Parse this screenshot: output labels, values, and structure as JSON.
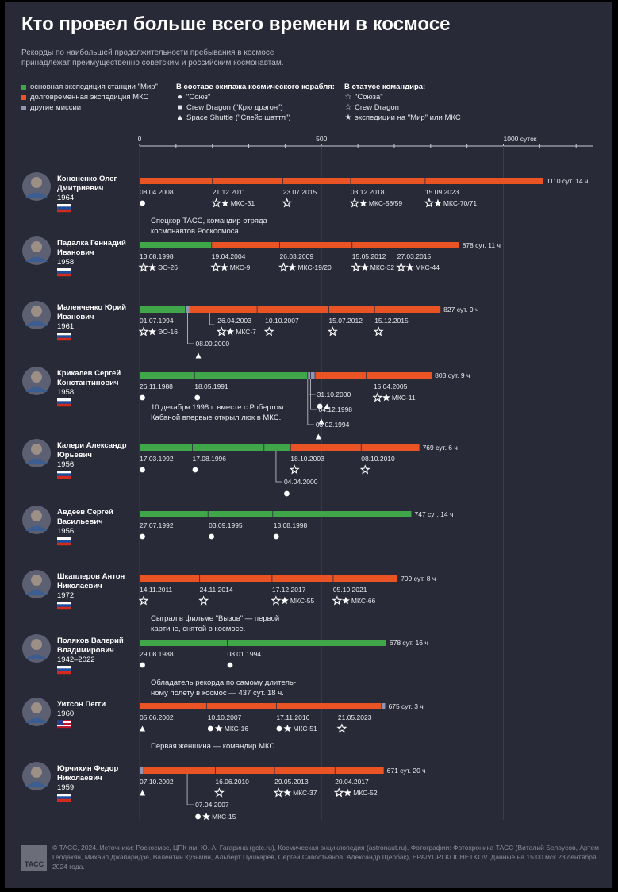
{
  "title": "Кто провел больше всего времени в космосе",
  "subtitle": "Рекорды по наибольшей продолжительности пребывания в космосе принадлежат преимущественно советским и российским космонавтам.",
  "colors": {
    "mir": "#3fa64a",
    "iss": "#ea5424",
    "other": "#8f96b3",
    "bg": "#292a38"
  },
  "legend": {
    "types": [
      "основная экспедиция станции \"Мир\"",
      "долговременная экспедиция МКС",
      "другие миссии"
    ],
    "crew_title": "В составе экипажа космического корабля:",
    "crew": [
      "\"Союз\"",
      "Crew Dragon (\"Крю дрэгон\")",
      "Space Shuttle (\"Спейс шаттл\")"
    ],
    "cmd_title": "В статусе командира:",
    "cmd": [
      "\"Союза\"",
      "Crew Dragon",
      "экспедиции на \"Мир\" или МКС"
    ]
  },
  "footer": "© ТАСС, 2024. Источники: Роскосмос, ЦПК им. Ю. А. Гагарина (gctc.ru), Космическая энциклопедия (astronaut.ru). Фотографии: Фотохроника ТАСС (Виталий Белоусов, Артем Геодакян, Михаил Джапаридзе, Валентин Кузьмин, Альберт Пушкарев, Сергей Савостьянов, Александр Щербак), EPA/YURI KOCHETKOV. Данные на 15:00 мск 23 сентября 2024 года.",
  "logo": "ТАСС",
  "chart_data": {
    "type": "bar",
    "x_axis_unit": "суток",
    "ticks": [
      {
        "value": 0,
        "label": "0"
      },
      {
        "value": 500,
        "label": "500"
      },
      {
        "value": 1000,
        "label": "1000 суток"
      }
    ],
    "xlim": [
      0,
      1250
    ],
    "people": [
      {
        "name1": "Кононенко Олег",
        "name2": "Дмитриевич",
        "years": "1964",
        "flag": "ru",
        "total": "1110 сут. 14 ч",
        "total_days": 1110,
        "segments": [
          {
            "type": "iss",
            "days": 200
          },
          {
            "type": "iss",
            "days": 194
          },
          {
            "type": "iss",
            "days": 186
          },
          {
            "type": "iss",
            "days": 205
          },
          {
            "type": "iss",
            "days": 325
          }
        ],
        "events": [
          {
            "date": "08.04.2008",
            "at": 0,
            "g": "dot"
          },
          {
            "date": "21.12.2011",
            "at": 200,
            "g": "star-o star",
            "label": "МКС-31"
          },
          {
            "date": "23.07.2015",
            "at": 394,
            "g": "star-o"
          },
          {
            "date": "03.12.2018",
            "at": 580,
            "g": "star-o star",
            "label": "МКС-58/59"
          },
          {
            "date": "15.09.2023",
            "at": 785,
            "g": "star-o star",
            "label": "МКС-70/71"
          }
        ],
        "note": [
          "Спецкор ТАСС, командир отряда",
          "космонавтов Роскосмоса"
        ]
      },
      {
        "name1": "Падалка Геннадий",
        "name2": "Иванович",
        "years": "1958",
        "flag": "ru",
        "total": "878 сут. 11 ч",
        "total_days": 878,
        "segments": [
          {
            "type": "mir",
            "days": 198
          },
          {
            "type": "iss",
            "days": 187
          },
          {
            "type": "iss",
            "days": 199
          },
          {
            "type": "iss",
            "days": 124
          },
          {
            "type": "iss",
            "days": 170
          }
        ],
        "events": [
          {
            "date": "13.08.1998",
            "at": 0,
            "g": "star-o star",
            "label": "ЭО-26"
          },
          {
            "date": "19.04.2004",
            "at": 198,
            "g": "star-o star",
            "label": "МКС-9"
          },
          {
            "date": "26.03.2009",
            "at": 385,
            "g": "star-o star",
            "label": "МКС-19/20"
          },
          {
            "date": "15.05.2012",
            "at": 584,
            "g": "star-o star",
            "label": "МКС-32"
          },
          {
            "date": "27.03.2015",
            "at": 708,
            "g": "star-o star",
            "label": "МКС-44"
          }
        ]
      },
      {
        "name1": "Маленченко Юрий",
        "name2": "Иванович",
        "years": "1961",
        "flag": "ru",
        "total": "827 сут. 9 ч",
        "total_days": 827,
        "segments": [
          {
            "type": "mir",
            "days": 126
          },
          {
            "type": "other",
            "days": 12
          },
          {
            "type": "iss",
            "days": 185
          },
          {
            "type": "iss",
            "days": 197
          },
          {
            "type": "iss",
            "days": 126
          },
          {
            "type": "iss",
            "days": 181
          }
        ],
        "events": [
          {
            "date": "01.07.1994",
            "at": 0,
            "g": "star-o star",
            "label": "ЭО-16"
          },
          {
            "date": "26.04.2003",
            "at": 210,
            "g": "star-o star",
            "label": "МКС-7",
            "callout": true
          },
          {
            "date": "10.10.2007",
            "at": 345,
            "g": "star-o"
          },
          {
            "date": "15.07.2012",
            "at": 520,
            "g": "star-o"
          },
          {
            "date": "15.12.2015",
            "at": 646,
            "g": "star-o"
          }
        ],
        "drops": [
          {
            "at": 132,
            "date": "08.09.2000",
            "g": "tri",
            "level": 1
          }
        ]
      },
      {
        "name1": "Крикалев Сергей",
        "name2": "Константинович",
        "years": "1958",
        "flag": "ru",
        "total": "803 сут. 9 ч",
        "total_days": 803,
        "segments": [
          {
            "type": "mir",
            "days": 151
          },
          {
            "type": "mir",
            "days": 311
          },
          {
            "type": "other",
            "days": 8
          },
          {
            "type": "other",
            "days": 12
          },
          {
            "type": "iss",
            "days": 141
          },
          {
            "type": "iss",
            "days": 180
          }
        ],
        "events": [
          {
            "date": "26.11.1988",
            "at": 0,
            "g": "dot"
          },
          {
            "date": "18.05.1991",
            "at": 151,
            "g": "dot"
          }
        ],
        "drops": [
          {
            "at": 466,
            "date": "31.10.2000",
            "g": "dot tri",
            "level": 0
          },
          {
            "at": 470,
            "date": "04.12.1998",
            "g": "tri",
            "level": 1
          },
          {
            "at": 462,
            "date": "03.02.1994",
            "g": "tri",
            "level": 2
          }
        ],
        "extra_events": [
          {
            "date": "15.04.2005",
            "at": 643,
            "g": "star-o star",
            "label": "МКС-11"
          }
        ],
        "note": [
          "10 декабря 1998 г. вместе с Робертом",
          "Кабаной впервые открыл люк в МКС."
        ]
      },
      {
        "name1": "Калери Александр",
        "name2": "Юрьевич",
        "years": "1956",
        "flag": "ru",
        "total": "769 сут. 6 ч",
        "total_days": 769,
        "segments": [
          {
            "type": "mir",
            "days": 145
          },
          {
            "type": "mir",
            "days": 197
          },
          {
            "type": "mir",
            "days": 73
          },
          {
            "type": "iss",
            "days": 194
          },
          {
            "type": "iss",
            "days": 160
          }
        ],
        "events": [
          {
            "date": "17.03.1992",
            "at": 0,
            "g": "dot"
          },
          {
            "date": "17.08.1996",
            "at": 145,
            "g": "dot"
          },
          {
            "date": "18.10.2003",
            "at": 415,
            "g": "star-o"
          },
          {
            "date": "08.10.2010",
            "at": 609,
            "g": "star-o"
          }
        ],
        "drops": [
          {
            "at": 375,
            "date": "04.04.2000",
            "g": "dot",
            "level": 1
          }
        ]
      },
      {
        "name1": "Авдеев Сергей",
        "name2": "Васильевич",
        "years": "1956",
        "flag": "ru",
        "total": "747 сут. 14 ч",
        "total_days": 747,
        "segments": [
          {
            "type": "mir",
            "days": 188
          },
          {
            "type": "mir",
            "days": 178
          },
          {
            "type": "mir",
            "days": 381
          }
        ],
        "events": [
          {
            "date": "27.07.1992",
            "at": 0,
            "g": "dot"
          },
          {
            "date": "03.09.1995",
            "at": 190,
            "g": "dot"
          },
          {
            "date": "13.08.1998",
            "at": 368,
            "g": "dot"
          }
        ]
      },
      {
        "name1": "Шкаплеров Антон",
        "name2": "Николаевич",
        "years": "1972",
        "flag": "ru",
        "total": "709 сут. 8 ч",
        "total_days": 709,
        "segments": [
          {
            "type": "iss",
            "days": 165
          },
          {
            "type": "iss",
            "days": 199
          },
          {
            "type": "iss",
            "days": 168
          },
          {
            "type": "iss",
            "days": 177
          }
        ],
        "events": [
          {
            "date": "14.11.2011",
            "at": 0,
            "g": "star-o"
          },
          {
            "date": "24.11.2014",
            "at": 165,
            "g": "star-o"
          },
          {
            "date": "17.12.2017",
            "at": 364,
            "g": "star-o star",
            "label": "МКС-55"
          },
          {
            "date": "05.10.2021",
            "at": 532,
            "g": "star-o star",
            "label": "МКС-66"
          }
        ],
        "note": [
          "Сыграл в фильме \"Вызов\" — первой",
          "картине, снятой в космосе."
        ]
      },
      {
        "name1": "Поляков Валерий",
        "name2": "Владимирович",
        "years": "1942–2022",
        "flag": "ru",
        "total": "678 сут. 16 ч",
        "total_days": 678,
        "segments": [
          {
            "type": "mir",
            "days": 241
          },
          {
            "type": "mir",
            "days": 437
          }
        ],
        "events": [
          {
            "date": "29.08.1988",
            "at": 0,
            "g": "dot"
          },
          {
            "date": "08.01.1994",
            "at": 241,
            "g": "dot"
          }
        ],
        "note": [
          "Обладатель рекорда по самому длитель-",
          "ному полету в космос — 437 сут. 18 ч."
        ]
      },
      {
        "name1": "Уитсон Пегги",
        "name2": "",
        "years": "1960",
        "flag": "us",
        "total": "675 сут. 3 ч",
        "total_days": 675,
        "segments": [
          {
            "type": "iss",
            "days": 184
          },
          {
            "type": "iss",
            "days": 192
          },
          {
            "type": "iss",
            "days": 289
          },
          {
            "type": "other",
            "days": 10
          }
        ],
        "events": [
          {
            "date": "05.06.2002",
            "at": 0,
            "g": "tri"
          },
          {
            "date": "10.10.2007",
            "at": 187,
            "g": "dot star",
            "label": "МКС-16"
          },
          {
            "date": "17.11.2016",
            "at": 376,
            "g": "dot star",
            "label": "МКС-51"
          },
          {
            "date": "21.05.2023",
            "at": 545,
            "g": "star-o"
          }
        ],
        "note": [
          "Первая женщина — командир МКС."
        ]
      },
      {
        "name1": "Юрчихин Федор",
        "name2": "Николаевич",
        "years": "1959",
        "flag": "ru",
        "total": "671 сут. 20 ч",
        "total_days": 671,
        "segments": [
          {
            "type": "other",
            "days": 11
          },
          {
            "type": "iss",
            "days": 197
          },
          {
            "type": "iss",
            "days": 163
          },
          {
            "type": "iss",
            "days": 166
          },
          {
            "type": "iss",
            "days": 134
          }
        ],
        "events": [
          {
            "date": "07.10.2002",
            "at": 0,
            "g": "tri"
          },
          {
            "date": "16.06.2010",
            "at": 208,
            "g": "star-o"
          },
          {
            "date": "29.05.2013",
            "at": 371,
            "g": "star-o star",
            "label": "МКС-37"
          },
          {
            "date": "20.04.2017",
            "at": 537,
            "g": "star-o star",
            "label": "МКС-52"
          }
        ],
        "drops": [
          {
            "at": 131,
            "date": "07.04.2007",
            "g": "dot star",
            "label": "МКС-15",
            "level": 1
          }
        ]
      }
    ]
  }
}
